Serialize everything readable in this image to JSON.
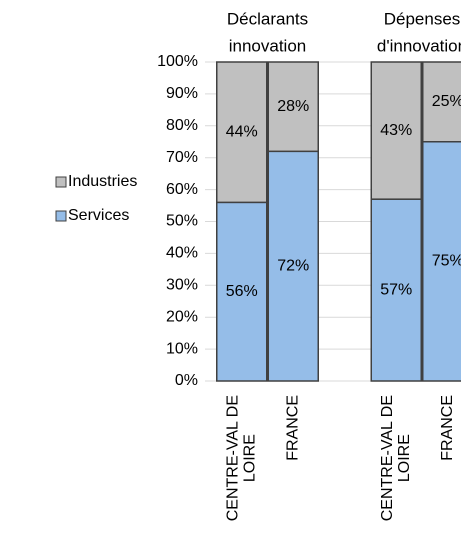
{
  "chart_data": {
    "type": "stacked_bar",
    "groups": [
      "Déclarants innovation",
      "Dépenses d'innovation"
    ],
    "categories": [
      "CENTRE-VAL DE LOIRE",
      "FRANCE",
      null,
      "CENTRE-VAL DE LOIRE",
      "FRANCE"
    ],
    "series": [
      {
        "name": "Services",
        "color": "#95bde8",
        "values": [
          56,
          72,
          null,
          57,
          75
        ],
        "value_labels": [
          "56%",
          "72%",
          null,
          "57%",
          "75%"
        ]
      },
      {
        "name": "Industries",
        "color": "#c0c0c0",
        "values": [
          44,
          28,
          null,
          43,
          25
        ],
        "value_labels": [
          "44%",
          "28%",
          null,
          "43%",
          "25%"
        ]
      }
    ],
    "ylim": [
      0,
      100
    ],
    "yticks": [
      {
        "value": 0,
        "label": "0%"
      },
      {
        "value": 10,
        "label": "10%"
      },
      {
        "value": 20,
        "label": "20%"
      },
      {
        "value": 30,
        "label": "30%"
      },
      {
        "value": 40,
        "label": "40%"
      },
      {
        "value": 50,
        "label": "50%"
      },
      {
        "value": 60,
        "label": "60%"
      },
      {
        "value": 70,
        "label": "70%"
      },
      {
        "value": 80,
        "label": "80%"
      },
      {
        "value": 90,
        "label": "90%"
      },
      {
        "value": 100,
        "label": "100%"
      }
    ],
    "grid": true,
    "legend": "left"
  }
}
